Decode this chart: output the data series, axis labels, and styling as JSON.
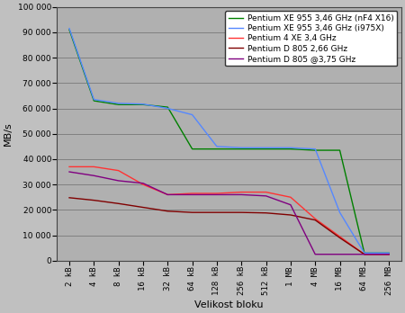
{
  "xlabel": "Velikost bloku",
  "ylabel": "MB/s",
  "x_labels": [
    "2 kB",
    "4 kB",
    "8 kB",
    "16 kB",
    "32 kB",
    "64 kB",
    "128 kB",
    "256 kB",
    "512 kB",
    "1 MB",
    "4 MB",
    "16 MB",
    "64 MB",
    "256 MB"
  ],
  "ylim": [
    0,
    100000
  ],
  "yticks": [
    0,
    10000,
    20000,
    30000,
    40000,
    50000,
    60000,
    70000,
    80000,
    90000,
    100000
  ],
  "series": [
    {
      "label": "Pentium XE 955 3,46 GHz (nF4 X16)",
      "color": "#008000",
      "values": [
        91000,
        63000,
        61500,
        61500,
        60500,
        44000,
        44000,
        44000,
        44000,
        44000,
        43500,
        43500,
        3000,
        3000
      ]
    },
    {
      "label": "Pentium XE 955 3,46 GHz (i975X)",
      "color": "#5588ff",
      "values": [
        91500,
        63500,
        62000,
        61700,
        60000,
        57500,
        45000,
        44500,
        44500,
        44500,
        44000,
        19000,
        3000,
        3000
      ]
    },
    {
      "label": "Pentium 4 XE 3,4 GHz",
      "color": "#ff3333",
      "values": [
        37000,
        37000,
        35500,
        30000,
        26000,
        26500,
        26500,
        27000,
        27000,
        25000,
        16500,
        9500,
        2500,
        2500
      ]
    },
    {
      "label": "Pentium D 805 2,66 GHz",
      "color": "#800000",
      "values": [
        24800,
        23800,
        22500,
        21000,
        19500,
        19000,
        19000,
        19000,
        18800,
        18000,
        16000,
        9000,
        2500,
        2500
      ]
    },
    {
      "label": "Pentium D 805 @3,75 GHz",
      "color": "#800080",
      "values": [
        35000,
        33500,
        31500,
        30500,
        26000,
        26000,
        26000,
        26000,
        25500,
        22000,
        2500,
        2500,
        2500,
        2500
      ]
    }
  ],
  "outer_bg_color": "#c0c0c0",
  "plot_bg_color": "#b0b0b0",
  "grid_color": "#808080",
  "tick_fontsize": 6.5,
  "label_fontsize": 8,
  "legend_fontsize": 6.5
}
